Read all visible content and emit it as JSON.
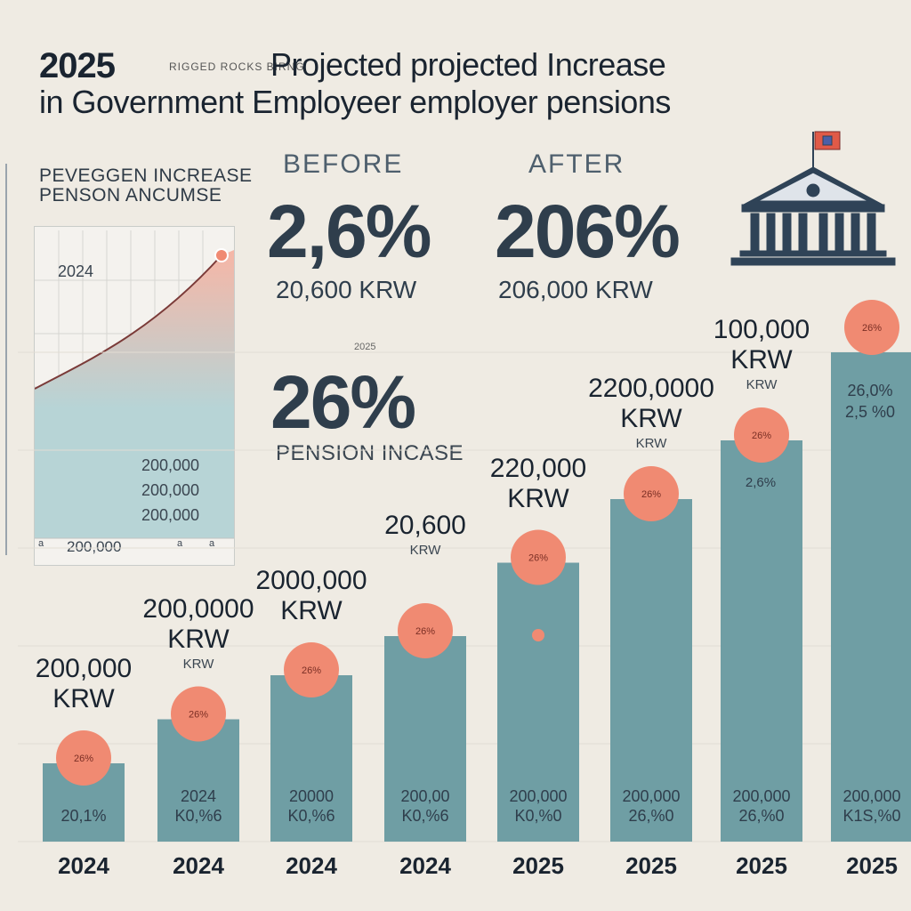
{
  "title": {
    "year": "2025",
    "small_text": "RIGGED ROCKS BIRNG",
    "line1": "Projected projected Increase",
    "line2": "in Government Employeer employer pensions"
  },
  "mini_chart": {
    "label_line1": "PEVEGGEN INCREASE",
    "label_line2": "PENSON ANCUMSE",
    "year_label": "2024",
    "value_lines": [
      "200,000",
      "200,000",
      "200,000"
    ],
    "axis_left": "a",
    "axis_mid": "200,000",
    "axis_right": "a",
    "axis_right2": "a"
  },
  "before": {
    "heading": "BEFORE",
    "percent": "2,6%",
    "amount": "20,600  KRW"
  },
  "after": {
    "heading": "AFTER",
    "percent": "206%",
    "amount": "206,000  KRW"
  },
  "middle": {
    "small": "2025",
    "percent": "26%",
    "label": "PENSION INCASE"
  },
  "colors": {
    "background": "#efebe3",
    "bar": "#6f9ea4",
    "circle": "#f08a72",
    "mini_area_top": "#f6b6a6",
    "mini_area_bottom": "#b7d4d6",
    "mini_line": "#7a3a38",
    "icon": "#2f4357"
  },
  "icon": {
    "name": "government-building-icon"
  },
  "chart_data": {
    "type": "bar",
    "title": "2025 Projected projected Increase in Government Employeer employer pensions",
    "categories": [
      "2024",
      "2024",
      "2024",
      "2024",
      "2025",
      "2025",
      "2025",
      "2025"
    ],
    "values": [
      16,
      25,
      34,
      42,
      57,
      70,
      82,
      100
    ],
    "ylim": [
      0,
      100
    ],
    "unit": "relative bar height (no axis shown)",
    "bars": [
      {
        "year": "2024",
        "label_top": "200,000",
        "label_bottom": "KRW",
        "label_sub": "",
        "circle_text": "26%",
        "in_bar_top": "",
        "in_bar_bottom": "20,1%"
      },
      {
        "year": "2024",
        "label_top": "200,0000",
        "label_bottom": "KRW",
        "label_sub": "KRW",
        "circle_text": "26%",
        "in_bar_top": "2024",
        "in_bar_bottom": "K0,%6"
      },
      {
        "year": "2024",
        "label_top": "2000,000",
        "label_bottom": "KRW",
        "label_sub": "",
        "circle_text": "26%",
        "in_bar_top": "20000",
        "in_bar_bottom": "K0,%6"
      },
      {
        "year": "2024",
        "label_top": "20,600",
        "label_bottom": "",
        "label_sub": "KRW",
        "circle_text": "26%",
        "in_bar_top": "200,00",
        "in_bar_bottom": "K0,%6"
      },
      {
        "year": "2025",
        "label_top": "220,000",
        "label_bottom": "KRW",
        "label_sub": "",
        "circle_text": "26%",
        "in_bar_top": "200,000",
        "in_bar_bottom": "K0,%0"
      },
      {
        "year": "2025",
        "label_top": "2200,0000",
        "label_bottom": "KRW",
        "label_sub": "KRW",
        "circle_text": "26%",
        "in_bar_top": "200,000",
        "in_bar_bottom": "26,%0"
      },
      {
        "year": "2025",
        "label_top": "100,000",
        "label_bottom": "KRW",
        "label_sub": "KRW",
        "circle_text": "26%",
        "in_bar_top": "200,000",
        "in_bar_bottom": "26,%0"
      },
      {
        "year": "2025",
        "label_top": "",
        "label_bottom": "",
        "label_sub": "",
        "circle_text": "26%",
        "in_bar_top": "200,000",
        "in_bar_bottom": "K1S,%0"
      }
    ],
    "extra_bar_labels": {
      "bar8_upper_1": "26,0%",
      "bar8_upper_2": "2,5 %0",
      "bar7_upper": "2,6%"
    }
  }
}
